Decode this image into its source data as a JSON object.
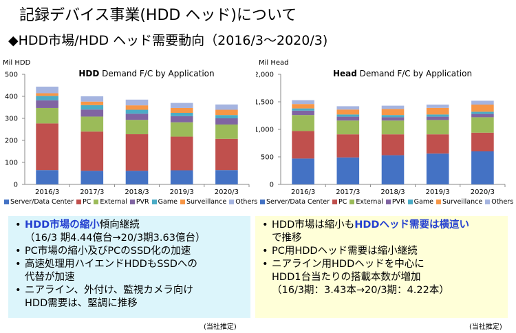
{
  "header": {
    "title": "記録デバイス事業(HDD ヘッド)について",
    "subtitle": "◆HDD市場/HDD ヘッド需要動向（2016/3～2020/3)"
  },
  "colors": [
    "#4472c4",
    "#c0504d",
    "#9bbb59",
    "#8064a2",
    "#4bacc6",
    "#f79646",
    "#a5b4e0"
  ],
  "legend": [
    "Server/Data Center",
    "PC",
    "External",
    "PVR",
    "Game",
    "Surveillance",
    "Others"
  ],
  "chart_data": [
    {
      "type": "bar",
      "stacked": true,
      "title_bold": "HDD",
      "title_rest": " Demand F/C by Application",
      "ylabel": "Mil HDD",
      "ylim": [
        0,
        500
      ],
      "yticks": [
        "0",
        "100",
        "200",
        "300",
        "400",
        "500"
      ],
      "tick_values": [
        0,
        100,
        200,
        300,
        400,
        500
      ],
      "categories": [
        "2016/3",
        "2017/3",
        "2018/3",
        "2019/3",
        "2020/3"
      ],
      "series": [
        {
          "name": "Server/Data Center",
          "values": [
            65,
            62,
            62,
            64,
            65
          ]
        },
        {
          "name": "PC",
          "values": [
            212,
            178,
            166,
            153,
            142
          ]
        },
        {
          "name": "External",
          "values": [
            70,
            68,
            65,
            65,
            65
          ]
        },
        {
          "name": "PVR",
          "values": [
            35,
            32,
            28,
            28,
            28
          ]
        },
        {
          "name": "Game",
          "values": [
            20,
            20,
            18,
            15,
            15
          ]
        },
        {
          "name": "Surveillance",
          "values": [
            12,
            16,
            20,
            22,
            24
          ]
        },
        {
          "name": "Others",
          "values": [
            30,
            24,
            26,
            23,
            24
          ]
        }
      ]
    },
    {
      "type": "bar",
      "stacked": true,
      "title_bold": "Head",
      "title_rest": " Demand F/C by Application",
      "ylabel": "Mil Head",
      "ylim": [
        0,
        2000
      ],
      "yticks": [
        "0",
        "500",
        "1,000",
        "1,500",
        "2,000"
      ],
      "tick_values": [
        0,
        500,
        1000,
        1500,
        2000
      ],
      "categories": [
        "2016/3",
        "2017/3",
        "2018/3",
        "2019/3",
        "2020/3"
      ],
      "series": [
        {
          "name": "Server/Data Center",
          "values": [
            470,
            490,
            530,
            560,
            600
          ]
        },
        {
          "name": "PC",
          "values": [
            500,
            420,
            380,
            350,
            340
          ]
        },
        {
          "name": "External",
          "values": [
            290,
            250,
            250,
            260,
            280
          ]
        },
        {
          "name": "PVR",
          "values": [
            80,
            70,
            60,
            60,
            60
          ]
        },
        {
          "name": "Game",
          "values": [
            40,
            40,
            40,
            40,
            40
          ]
        },
        {
          "name": "Surveillance",
          "values": [
            80,
            90,
            110,
            120,
            130
          ]
        },
        {
          "name": "Others",
          "values": [
            70,
            60,
            60,
            60,
            70
          ]
        }
      ]
    }
  ],
  "left_box": {
    "b1_hl": "HDD市場の縮小",
    "b1_rest": "傾向継続",
    "b1_cont": "（16/3 期4.44億台→20/3期3.63億台）",
    "b2": "PC市場の縮小及びPCのSSD化の加速",
    "b3": "高速処理用ハイエンドHDDもSSDへの",
    "b3_cont": "代替が加速",
    "b4": "ニアライン、外付け、監視カメラ向け",
    "b4_cont": "HDD需要は、堅調に推移",
    "note": "(当社推定)"
  },
  "right_box": {
    "b1_pre": "HDD市場は縮小も",
    "b1_hl": "HDDヘッド需要は横這い",
    "b1_cont": "で推移",
    "b2": "PC用HDDヘッド需要は縮小継続",
    "b3": "ニアライン用HDDヘッドを中心に",
    "b3_cont": "HDD1台当たりの搭載本数が増加",
    "b3_cont2": "（16/3期：3.43本→20/3期：4.22本）",
    "note": "(当社推定)"
  }
}
